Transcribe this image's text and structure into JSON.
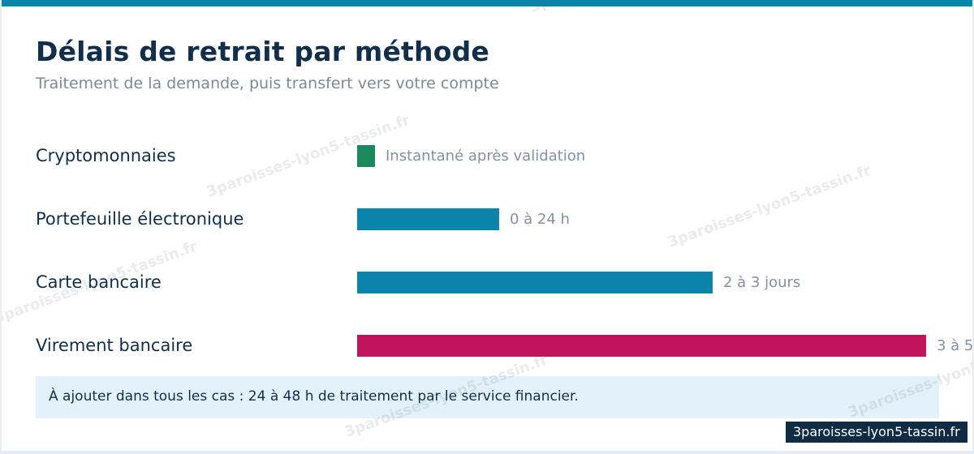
{
  "header": {
    "title": "Délais de retrait par méthode",
    "subtitle": "Traitement de la demande, puis transfert vers votre compte"
  },
  "chart_data": {
    "type": "bar",
    "orientation": "horizontal",
    "title": "Délais de retrait par méthode",
    "subtitle": "Traitement de la demande, puis transfert vers votre compte",
    "categories": [
      "Cryptomonnaies",
      "Portefeuille électronique",
      "Carte bancaire",
      "Virement bancaire"
    ],
    "value_labels": [
      "Instantané après validation",
      "0 à 24 h",
      "2 à 3 jours",
      "3 à 5"
    ],
    "values": [
      0.125,
      1,
      2.5,
      4
    ],
    "xlim": [
      0,
      4
    ],
    "colors": [
      "#1a8a5e",
      "#0a84aa",
      "#0a84aa",
      "#c2145c"
    ],
    "grid": false,
    "legend": "none"
  },
  "note": {
    "text": "À ajouter dans tous les cas : 24 à 48 h de traitement par le service financier."
  },
  "watermark": {
    "text": "3paroisses-lyon5-tassin.fr"
  },
  "badge": {
    "text": "3paroisses-lyon5-tassin.fr"
  }
}
